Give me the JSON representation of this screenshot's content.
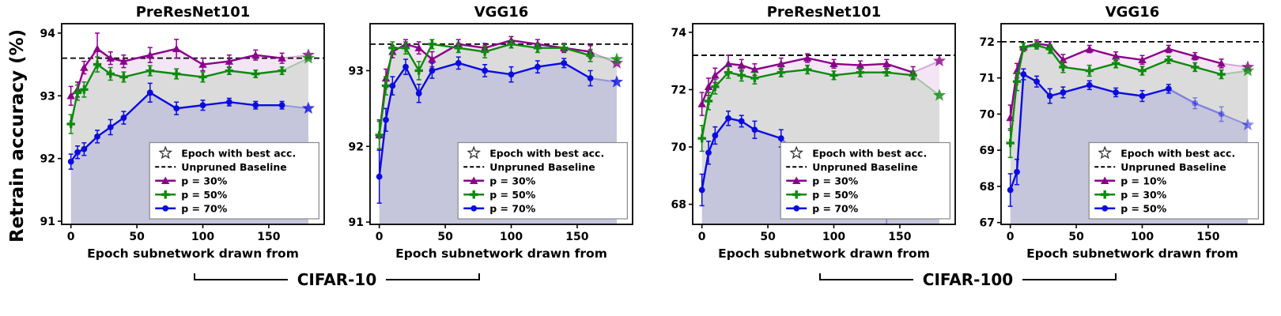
{
  "figure": {
    "ylabel": "Retrain accuracy (%)",
    "dataset_groups": [
      {
        "label": "CIFAR-10"
      },
      {
        "label": "CIFAR-100"
      }
    ]
  },
  "legend_common": {
    "best_label": "Epoch with best acc.",
    "baseline_label": "Unpruned Baseline"
  },
  "chart_data": [
    {
      "type": "line",
      "title": "PreResNet101",
      "dataset": "CIFAR-10",
      "xlabel": "Epoch subnetwork drawn from",
      "ylabel": "Retrain accuracy (%)",
      "xlim": [
        -7,
        192
      ],
      "ylim": [
        90.95,
        94.15
      ],
      "xticks": [
        0,
        50,
        100,
        150
      ],
      "yticks": [
        91,
        92,
        93,
        94
      ],
      "baseline": 93.6,
      "x": [
        0,
        5,
        10,
        20,
        30,
        40,
        60,
        80,
        100,
        120,
        140,
        160
      ],
      "best_epoch_x": 180,
      "series": [
        {
          "name": "p = 30%",
          "color": "#8B008B",
          "marker": "triangle",
          "values": [
            93.0,
            93.1,
            93.45,
            93.75,
            93.6,
            93.55,
            93.65,
            93.75,
            93.5,
            93.55,
            93.65,
            93.6
          ],
          "err": [
            0.15,
            0.12,
            0.1,
            0.25,
            0.1,
            0.1,
            0.12,
            0.15,
            0.1,
            0.1,
            0.08,
            0.08
          ],
          "best": 93.65,
          "fade_from": null
        },
        {
          "name": "p = 50%",
          "color": "#0E8A0E",
          "marker": "plus",
          "values": [
            92.55,
            93.05,
            93.1,
            93.5,
            93.35,
            93.3,
            93.4,
            93.35,
            93.3,
            93.4,
            93.35,
            93.4
          ],
          "err": [
            0.15,
            0.12,
            0.12,
            0.12,
            0.1,
            0.08,
            0.08,
            0.08,
            0.08,
            0.06,
            0.06,
            0.06
          ],
          "best": 93.6,
          "fade_from": null
        },
        {
          "name": "p = 70%",
          "color": "#0B0BE0",
          "marker": "circle",
          "values": [
            91.95,
            92.1,
            92.15,
            92.35,
            92.5,
            92.65,
            93.05,
            92.8,
            92.85,
            92.9,
            92.85,
            92.85
          ],
          "err": [
            0.12,
            0.1,
            0.1,
            0.1,
            0.12,
            0.1,
            0.15,
            0.1,
            0.08,
            0.06,
            0.06,
            0.06
          ],
          "best": 92.8,
          "fade_from": null
        }
      ]
    },
    {
      "type": "line",
      "title": "VGG16",
      "dataset": "CIFAR-10",
      "xlabel": "Epoch subnetwork drawn from",
      "ylabel": "Retrain accuracy (%)",
      "xlim": [
        -7,
        192
      ],
      "ylim": [
        90.97,
        93.62
      ],
      "xticks": [
        0,
        50,
        100,
        150
      ],
      "yticks": [
        91,
        92,
        93
      ],
      "baseline": 93.35,
      "x": [
        0,
        5,
        10,
        20,
        30,
        40,
        60,
        80,
        100,
        120,
        140,
        160
      ],
      "best_epoch_x": 180,
      "series": [
        {
          "name": "p = 30%",
          "color": "#8B008B",
          "marker": "triangle",
          "values": [
            92.15,
            92.9,
            93.25,
            93.35,
            93.3,
            93.15,
            93.35,
            93.3,
            93.4,
            93.35,
            93.3,
            93.25
          ],
          "err": [
            0.2,
            0.12,
            0.08,
            0.06,
            0.08,
            0.1,
            0.06,
            0.06,
            0.05,
            0.06,
            0.06,
            0.08
          ],
          "best": 93.1,
          "fade_from": null
        },
        {
          "name": "p = 50%",
          "color": "#0E8A0E",
          "marker": "plus",
          "values": [
            92.15,
            92.8,
            93.3,
            93.3,
            93.0,
            93.35,
            93.3,
            93.25,
            93.35,
            93.3,
            93.3,
            93.2
          ],
          "err": [
            0.18,
            0.12,
            0.08,
            0.08,
            0.12,
            0.06,
            0.06,
            0.08,
            0.05,
            0.06,
            0.05,
            0.08
          ],
          "best": 93.15,
          "fade_from": null
        },
        {
          "name": "p = 70%",
          "color": "#0B0BE0",
          "marker": "circle",
          "values": [
            91.6,
            92.35,
            92.8,
            93.05,
            92.7,
            93.0,
            93.1,
            93.0,
            92.95,
            93.05,
            93.1,
            92.9
          ],
          "err": [
            0.35,
            0.15,
            0.12,
            0.1,
            0.12,
            0.1,
            0.08,
            0.08,
            0.1,
            0.08,
            0.06,
            0.1
          ],
          "best": 92.85,
          "fade_from": null
        }
      ]
    },
    {
      "type": "line",
      "title": "PreResNet101",
      "dataset": "CIFAR-100",
      "xlabel": "Epoch subnetwork drawn from",
      "ylabel": "Retrain accuracy (%)",
      "xlim": [
        -7,
        192
      ],
      "ylim": [
        67.3,
        74.3
      ],
      "xticks": [
        0,
        50,
        100,
        150
      ],
      "yticks": [
        68,
        70,
        72,
        74
      ],
      "baseline": 73.2,
      "x": [
        0,
        5,
        10,
        20,
        30,
        40,
        60,
        80,
        100,
        120,
        140,
        160
      ],
      "best_epoch_x": 180,
      "series": [
        {
          "name": "p = 30%",
          "color": "#8B008B",
          "marker": "triangle",
          "values": [
            71.5,
            72.1,
            72.5,
            72.9,
            72.85,
            72.7,
            72.9,
            73.1,
            72.9,
            72.85,
            72.9,
            72.6
          ],
          "err": [
            0.4,
            0.3,
            0.25,
            0.3,
            0.2,
            0.2,
            0.2,
            0.15,
            0.15,
            0.15,
            0.15,
            0.2
          ],
          "best": 73.0,
          "fade_from": null
        },
        {
          "name": "p = 50%",
          "color": "#0E8A0E",
          "marker": "plus",
          "values": [
            70.3,
            71.6,
            72.1,
            72.6,
            72.5,
            72.4,
            72.6,
            72.7,
            72.5,
            72.6,
            72.6,
            72.5
          ],
          "err": [
            0.45,
            0.3,
            0.25,
            0.2,
            0.2,
            0.2,
            0.15,
            0.15,
            0.15,
            0.15,
            0.12,
            0.15
          ],
          "best": 71.8,
          "fade_from": null
        },
        {
          "name": "p = 70%",
          "color": "#0B0BE0",
          "marker": "circle",
          "values": [
            68.5,
            69.8,
            70.4,
            71.0,
            70.9,
            70.6,
            70.3,
            69.4,
            69.0,
            68.6,
            67.6,
            68.0
          ],
          "err": [
            0.55,
            0.4,
            0.3,
            0.25,
            0.2,
            0.3,
            0.3,
            0.3,
            0.25,
            0.25,
            0.3,
            0.25
          ],
          "best": 68.8,
          "fade_from": 7
        }
      ]
    },
    {
      "type": "line",
      "title": "VGG16",
      "dataset": "CIFAR-100",
      "xlabel": "Epoch subnetwork drawn from",
      "ylabel": "Retrain accuracy (%)",
      "xlim": [
        -7,
        192
      ],
      "ylim": [
        66.95,
        72.5
      ],
      "xticks": [
        0,
        50,
        100,
        150
      ],
      "yticks": [
        67,
        68,
        69,
        70,
        71,
        72
      ],
      "baseline": 72.0,
      "x": [
        0,
        5,
        10,
        20,
        30,
        40,
        60,
        80,
        100,
        120,
        140,
        160
      ],
      "best_epoch_x": 180,
      "series": [
        {
          "name": "p = 10%",
          "color": "#8B008B",
          "marker": "triangle",
          "values": [
            69.9,
            71.2,
            71.85,
            71.95,
            71.9,
            71.5,
            71.8,
            71.6,
            71.5,
            71.8,
            71.6,
            71.4
          ],
          "err": [
            0.35,
            0.2,
            0.12,
            0.1,
            0.1,
            0.15,
            0.1,
            0.12,
            0.12,
            0.1,
            0.1,
            0.12
          ],
          "best": 71.3,
          "fade_from": null
        },
        {
          "name": "p = 30%",
          "color": "#0E8A0E",
          "marker": "plus",
          "values": [
            69.2,
            70.9,
            71.85,
            71.9,
            71.8,
            71.3,
            71.2,
            71.4,
            71.2,
            71.5,
            71.3,
            71.1
          ],
          "err": [
            0.4,
            0.25,
            0.12,
            0.1,
            0.12,
            0.15,
            0.15,
            0.12,
            0.12,
            0.1,
            0.12,
            0.12
          ],
          "best": 71.2,
          "fade_from": null
        },
        {
          "name": "p = 50%",
          "color": "#0B0BE0",
          "marker": "circle",
          "values": [
            67.9,
            68.4,
            71.1,
            70.9,
            70.5,
            70.6,
            70.8,
            70.6,
            70.5,
            70.7,
            70.3,
            70.0
          ],
          "err": [
            0.45,
            0.35,
            0.15,
            0.15,
            0.2,
            0.15,
            0.12,
            0.12,
            0.15,
            0.12,
            0.15,
            0.2
          ],
          "best": 69.7,
          "fade_from": 10
        }
      ]
    }
  ]
}
